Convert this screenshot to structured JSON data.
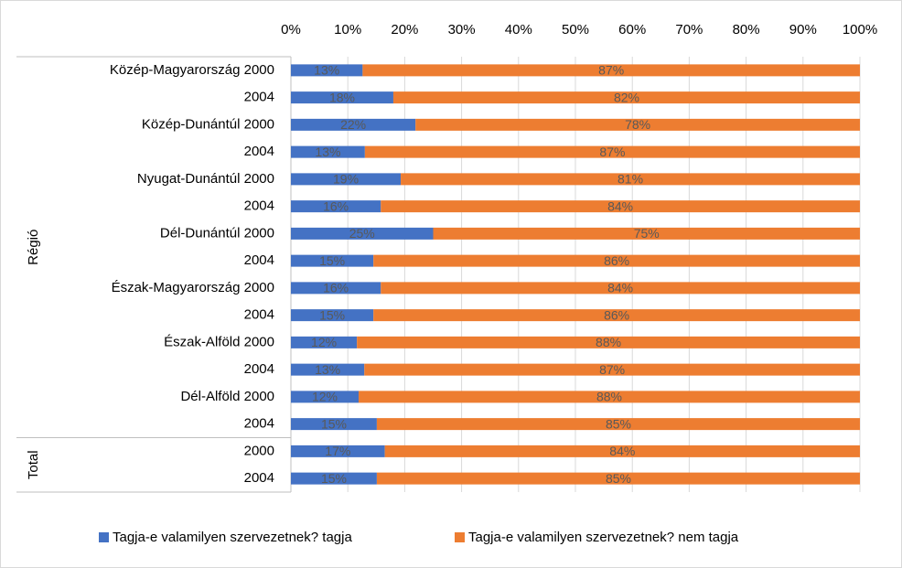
{
  "chart_data": {
    "type": "stacked-barh",
    "categories": [
      "Közép-Magyarország 2000",
      "2004",
      "Közép-Dunántúl 2000",
      "2004",
      "Nyugat-Dunántúl 2000",
      "2004",
      "Dél-Dunántúl 2000",
      "2004",
      "Észak-Magyarország 2000",
      "2004",
      "Észak-Alföld 2000",
      "2004",
      "Dél-Alföld 2000",
      "2004",
      "2000",
      "2004"
    ],
    "groups": [
      {
        "label": "Régió",
        "size": 14
      },
      {
        "label": "Total",
        "size": 2
      }
    ],
    "series": [
      {
        "name": "Tagja-e valamilyen szervezetnek? tagja",
        "color": "#4472c4",
        "values": [
          12.6,
          18,
          21.9,
          13,
          19.3,
          15.8,
          25,
          14.5,
          15.8,
          14.5,
          11.6,
          12.9,
          11.9,
          15.1,
          16.5,
          15.1
        ],
        "value_labels": [
          "13%",
          "18%",
          "22%",
          "13%",
          "19%",
          "16%",
          "25%",
          "15%",
          "16%",
          "15%",
          "12%",
          "13%",
          "12%",
          "15%",
          "17%",
          "15%"
        ]
      },
      {
        "name": "Tagja-e valamilyen szervezetnek? nem tagja",
        "color": "#ed7d31",
        "values": [
          87.4,
          82,
          78.1,
          87,
          80.7,
          84.2,
          75,
          85.5,
          84.2,
          85.5,
          88.4,
          87.1,
          88.1,
          84.9,
          83.5,
          84.9
        ],
        "value_labels": [
          "87%",
          "82%",
          "78%",
          "87%",
          "81%",
          "84%",
          "75%",
          "86%",
          "84%",
          "86%",
          "88%",
          "87%",
          "88%",
          "85%",
          "84%",
          "85%"
        ]
      }
    ],
    "xlim": [
      0,
      100
    ],
    "xticks": [
      {
        "value": 0,
        "label": "0%"
      },
      {
        "value": 10,
        "label": "10%"
      },
      {
        "value": 20,
        "label": "20%"
      },
      {
        "value": 30,
        "label": "30%"
      },
      {
        "value": 40,
        "label": "40%"
      },
      {
        "value": 50,
        "label": "50%"
      },
      {
        "value": 60,
        "label": "60%"
      },
      {
        "value": 70,
        "label": "70%"
      },
      {
        "value": 80,
        "label": "80%"
      },
      {
        "value": 90,
        "label": "90%"
      },
      {
        "value": 100,
        "label": "100%"
      }
    ],
    "grid": true,
    "legend": "bottom"
  }
}
